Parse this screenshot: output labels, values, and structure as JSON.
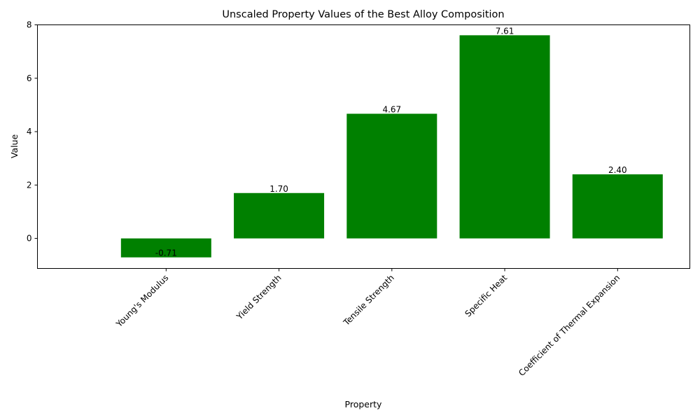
{
  "chart_data": {
    "type": "bar",
    "title": "Unscaled Property Values of the Best Alloy Composition",
    "xlabel": "Property",
    "ylabel": "Value",
    "categories": [
      "Young's Modulus",
      "Yield Strength",
      "Tensile Strength",
      "Specific Heat",
      "Coefficient of Thermal Expansion"
    ],
    "values": [
      -0.71,
      1.7,
      4.67,
      7.61,
      2.4
    ],
    "data_labels": [
      "-0.71",
      "1.70",
      "4.67",
      "7.61",
      "2.40"
    ],
    "ylim": [
      -1.125,
      8.0
    ],
    "yticks": [
      0,
      2,
      4,
      6,
      8
    ],
    "ytick_labels": [
      "0",
      "2",
      "4",
      "6",
      "8"
    ],
    "bar_color": "#008000",
    "grid": false
  }
}
